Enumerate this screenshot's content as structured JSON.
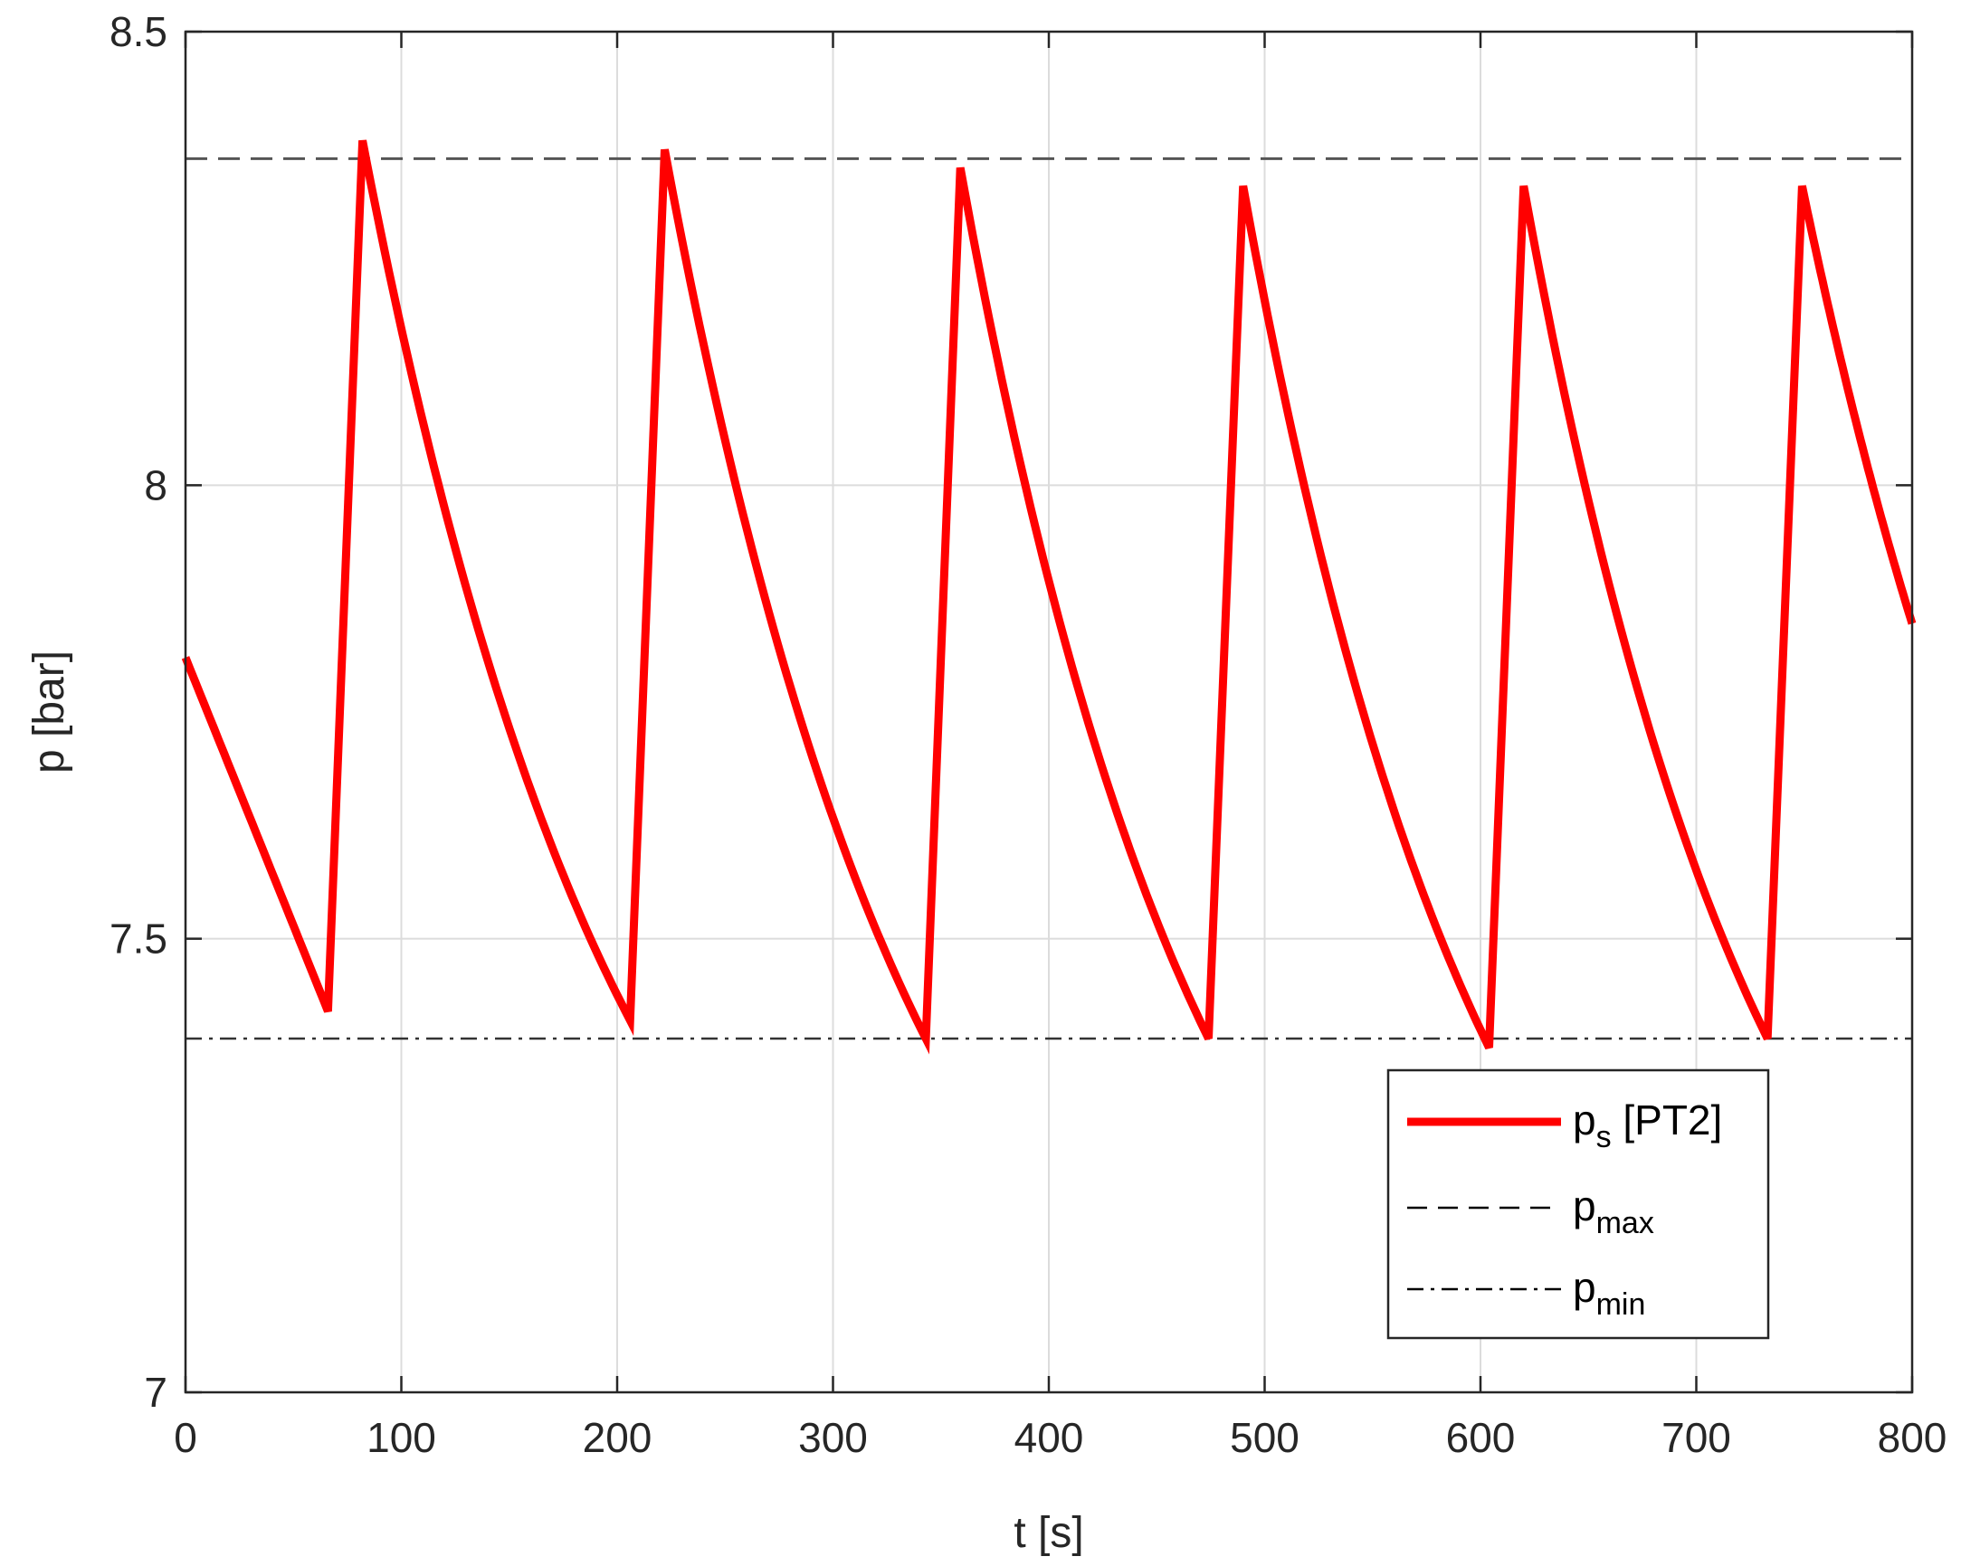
{
  "chart_data": {
    "type": "line",
    "title": "",
    "xlabel": "t [s]",
    "ylabel": "p [bar]",
    "xlim": [
      0,
      800
    ],
    "ylim": [
      7,
      8.5
    ],
    "xticks": [
      "0",
      "100",
      "200",
      "300",
      "400",
      "500",
      "600",
      "700",
      "800"
    ],
    "xtick_values": [
      0,
      100,
      200,
      300,
      400,
      500,
      600,
      700,
      800
    ],
    "yticks": [
      "7",
      "7.5",
      "8",
      "8.5"
    ],
    "ytick_values": [
      7,
      7.5,
      8,
      8.5
    ],
    "grid": true,
    "legend_position": "bottom-right",
    "series": [
      {
        "name": "p_s [PT2]",
        "legend_main": "p",
        "legend_sub": "s",
        "legend_suffix": " [PT2]",
        "color": "#ff0000",
        "style": "solid",
        "cycles": [
          {
            "t_min": 66,
            "p_min": 7.42,
            "t_peak": 82,
            "p_peak": 8.38,
            "t_next_min": 206,
            "p_next_min": 7.41
          },
          {
            "t_min": 206,
            "p_min": 7.41,
            "t_peak": 222,
            "p_peak": 8.37,
            "t_next_min": 343,
            "p_next_min": 7.39
          },
          {
            "t_min": 343,
            "p_min": 7.39,
            "t_peak": 359,
            "p_peak": 8.35,
            "t_next_min": 474,
            "p_next_min": 7.39
          },
          {
            "t_min": 474,
            "p_min": 7.39,
            "t_peak": 490,
            "p_peak": 8.33,
            "t_next_min": 604,
            "p_next_min": 7.38
          },
          {
            "t_min": 604,
            "p_min": 7.38,
            "t_peak": 620,
            "p_peak": 8.33,
            "t_next_min": 733,
            "p_next_min": 7.39
          },
          {
            "t_min": 733,
            "p_min": 7.39,
            "t_peak": 749,
            "p_peak": 8.33,
            "t_next_min": 800,
            "p_next_min": 7.8
          }
        ],
        "x": [
          0,
          66,
          82,
          206,
          222,
          343,
          359,
          474,
          490,
          604,
          620,
          733,
          749,
          800
        ],
        "y": [
          7.81,
          7.42,
          8.38,
          7.41,
          8.37,
          7.39,
          8.35,
          7.39,
          8.33,
          7.38,
          8.33,
          7.39,
          8.33,
          7.8
        ]
      },
      {
        "name": "p_max",
        "legend_main": "p",
        "legend_sub": "max",
        "legend_suffix": "",
        "color": "#555555",
        "style": "dashed",
        "value": 8.36
      },
      {
        "name": "p_min",
        "legend_main": "p",
        "legend_sub": "min",
        "legend_suffix": "",
        "color": "#333333",
        "style": "dashdot",
        "value": 7.39
      }
    ]
  }
}
